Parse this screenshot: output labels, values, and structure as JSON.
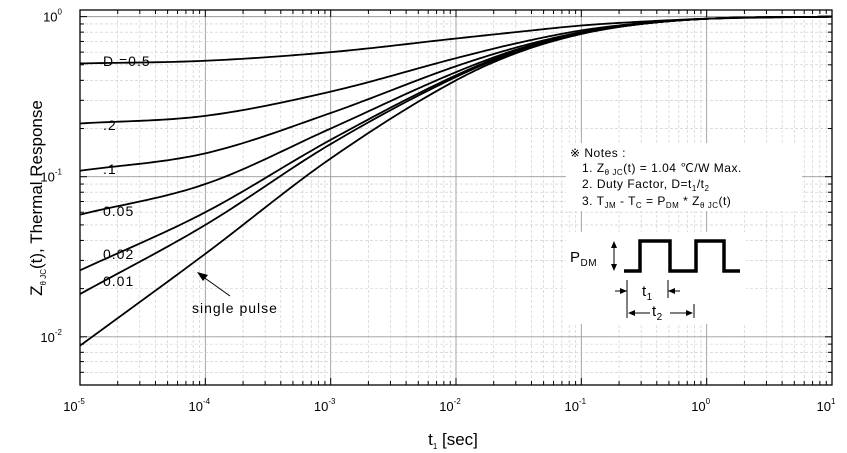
{
  "chart_data": {
    "type": "line",
    "xlabel": "t",
    "xlabel_sub": "1",
    "xlabel_unit": " [sec]",
    "ylabel_parts": {
      "pre": "Z",
      "sub": "θ JC",
      "post": "(t), Thermal Response"
    },
    "x_scale": "log",
    "y_scale": "log",
    "xlim": [
      1e-05,
      10
    ],
    "ylim": [
      0.005,
      1.1
    ],
    "grid": true,
    "x_ticks": [
      {
        "value": 1e-05,
        "base": "10",
        "exp": "-5"
      },
      {
        "value": 0.0001,
        "base": "10",
        "exp": "-4"
      },
      {
        "value": 0.001,
        "base": "10",
        "exp": "-3"
      },
      {
        "value": 0.01,
        "base": "10",
        "exp": "-2"
      },
      {
        "value": 0.1,
        "base": "10",
        "exp": "-1"
      },
      {
        "value": 1,
        "base": "10",
        "exp": "0"
      },
      {
        "value": 10,
        "base": "10",
        "exp": "1"
      }
    ],
    "y_ticks": [
      {
        "value": 0.01,
        "base": "10",
        "exp": "-2"
      },
      {
        "value": 0.1,
        "base": "10",
        "exp": "-1"
      },
      {
        "value": 1,
        "base": "10",
        "exp": "0"
      }
    ],
    "series": [
      {
        "name": "D =0.5",
        "label_value": 0.5,
        "points": [
          [
            1e-05,
            0.51
          ],
          [
            0.0001,
            0.53
          ],
          [
            0.001,
            0.6
          ],
          [
            0.01,
            0.73
          ],
          [
            0.03,
            0.8
          ],
          [
            0.1,
            0.88
          ],
          [
            0.3,
            0.93
          ],
          [
            1,
            0.97
          ],
          [
            10,
            1.0
          ]
        ]
      },
      {
        "name": ".2",
        "label_value": 0.21,
        "points": [
          [
            1e-05,
            0.215
          ],
          [
            0.0001,
            0.24
          ],
          [
            0.001,
            0.34
          ],
          [
            0.01,
            0.55
          ],
          [
            0.03,
            0.68
          ],
          [
            0.1,
            0.82
          ],
          [
            0.3,
            0.91
          ],
          [
            1,
            0.97
          ],
          [
            10,
            1.0
          ]
        ]
      },
      {
        "name": ".1",
        "label_value": 0.108,
        "points": [
          [
            1e-05,
            0.109
          ],
          [
            0.0001,
            0.14
          ],
          [
            0.001,
            0.25
          ],
          [
            0.01,
            0.49
          ],
          [
            0.03,
            0.64
          ],
          [
            0.1,
            0.8
          ],
          [
            0.3,
            0.9
          ],
          [
            1,
            0.97
          ],
          [
            10,
            1.0
          ]
        ]
      },
      {
        "name": "0.05",
        "label_value": 0.058,
        "points": [
          [
            1e-05,
            0.058
          ],
          [
            0.0001,
            0.09
          ],
          [
            0.001,
            0.2
          ],
          [
            0.01,
            0.45
          ],
          [
            0.03,
            0.62
          ],
          [
            0.1,
            0.79
          ],
          [
            0.3,
            0.9
          ],
          [
            1,
            0.97
          ],
          [
            10,
            1.0
          ]
        ]
      },
      {
        "name": "0.02",
        "label_value": 0.027,
        "points": [
          [
            1e-05,
            0.026
          ],
          [
            0.0001,
            0.06
          ],
          [
            0.001,
            0.17
          ],
          [
            0.01,
            0.43
          ],
          [
            0.03,
            0.61
          ],
          [
            0.1,
            0.79
          ],
          [
            0.3,
            0.9
          ],
          [
            1,
            0.97
          ],
          [
            10,
            1.0
          ]
        ]
      },
      {
        "name": "0.01",
        "label_value": 0.019,
        "points": [
          [
            1e-05,
            0.0185
          ],
          [
            0.0001,
            0.05
          ],
          [
            0.001,
            0.16
          ],
          [
            0.01,
            0.42
          ],
          [
            0.03,
            0.6
          ],
          [
            0.1,
            0.78
          ],
          [
            0.3,
            0.9
          ],
          [
            1,
            0.97
          ],
          [
            10,
            1.0
          ]
        ]
      },
      {
        "name": "single pulse",
        "label_value": null,
        "points": [
          [
            1e-05,
            0.0088
          ],
          [
            0.0001,
            0.033
          ],
          [
            0.001,
            0.13
          ],
          [
            0.01,
            0.4
          ],
          [
            0.03,
            0.59
          ],
          [
            0.1,
            0.78
          ],
          [
            0.3,
            0.9
          ],
          [
            1,
            0.97
          ],
          [
            10,
            1.0
          ]
        ]
      }
    ],
    "curve_labels": [
      {
        "text": "D =0.5"
      },
      {
        "text": ".2"
      },
      {
        "text": ".1"
      },
      {
        "text": "0.05"
      },
      {
        "text": "0.02"
      },
      {
        "text": "0.01"
      },
      {
        "text": "single pulse"
      }
    ],
    "notes": {
      "header": "※ Notes :",
      "line1": {
        "pre": "1. Z",
        "sub": "θ JC",
        "post": "(t) = 1.04 ℃/W Max."
      },
      "line2": {
        "pre": "2. Duty Factor, D=t",
        "sub1": "1",
        "mid": "/t",
        "sub2": "2"
      },
      "line3": {
        "a": "3. T",
        "a_sub": "JM",
        "b": " - T",
        "b_sub": "C",
        "c": " = P",
        "c_sub": "DM",
        "d": " * Z",
        "d_sub": "θ JC",
        "e": "(t)"
      }
    },
    "pulse_diagram": {
      "pdm": "P",
      "pdm_sub": "DM",
      "t1": "t",
      "t1_sub": "1",
      "t2": "t",
      "t2_sub": "2"
    }
  }
}
